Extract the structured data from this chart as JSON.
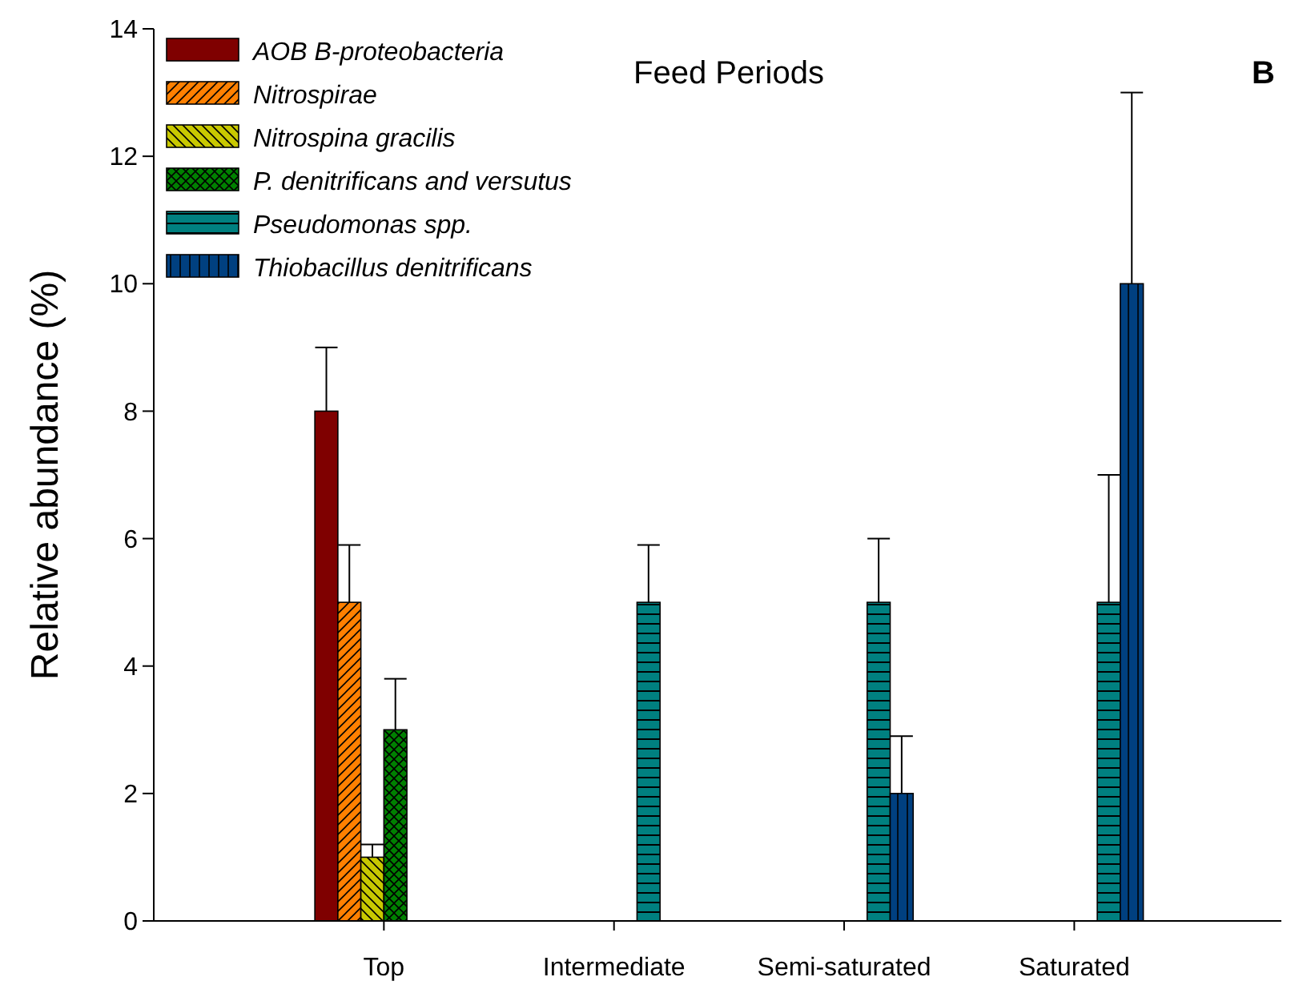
{
  "chart_data": {
    "type": "bar",
    "title": "Feed Periods",
    "ylabel": "Relative abundance (%)",
    "annotations": [
      "B"
    ],
    "categories": [
      "Top",
      "Intermediate",
      "Semi-saturated",
      "Saturated"
    ],
    "series": [
      {
        "name": "AOB B-proteobacteria",
        "color": "#7f0000",
        "values": [
          8,
          null,
          null,
          null
        ],
        "errors": [
          1,
          null,
          null,
          null
        ]
      },
      {
        "name": "Nitrospirae",
        "color": "#ff8000",
        "values": [
          5,
          null,
          null,
          null
        ],
        "errors": [
          0.9,
          null,
          null,
          null
        ]
      },
      {
        "name": "Nitrospina gracilis",
        "color": "#c8c800",
        "values": [
          1,
          null,
          null,
          null
        ],
        "errors": [
          0.2,
          null,
          null,
          null
        ]
      },
      {
        "name": "P. denitrificans and versutus",
        "color": "#008000",
        "values": [
          3,
          null,
          null,
          null
        ],
        "errors": [
          0.8,
          null,
          null,
          null
        ]
      },
      {
        "name": "Pseudomonas spp.",
        "color": "#008080",
        "values": [
          null,
          5,
          5,
          5
        ],
        "errors": [
          null,
          0.9,
          1,
          2
        ]
      },
      {
        "name": "Thiobacillus denitrificans",
        "color": "#004080",
        "values": [
          null,
          null,
          2,
          10
        ],
        "errors": [
          null,
          null,
          0.9,
          3
        ]
      }
    ],
    "ylim": [
      0,
      14
    ],
    "yticks": [
      0,
      2,
      4,
      6,
      8,
      10,
      12,
      14
    ],
    "grid": false,
    "legend": "top left"
  }
}
